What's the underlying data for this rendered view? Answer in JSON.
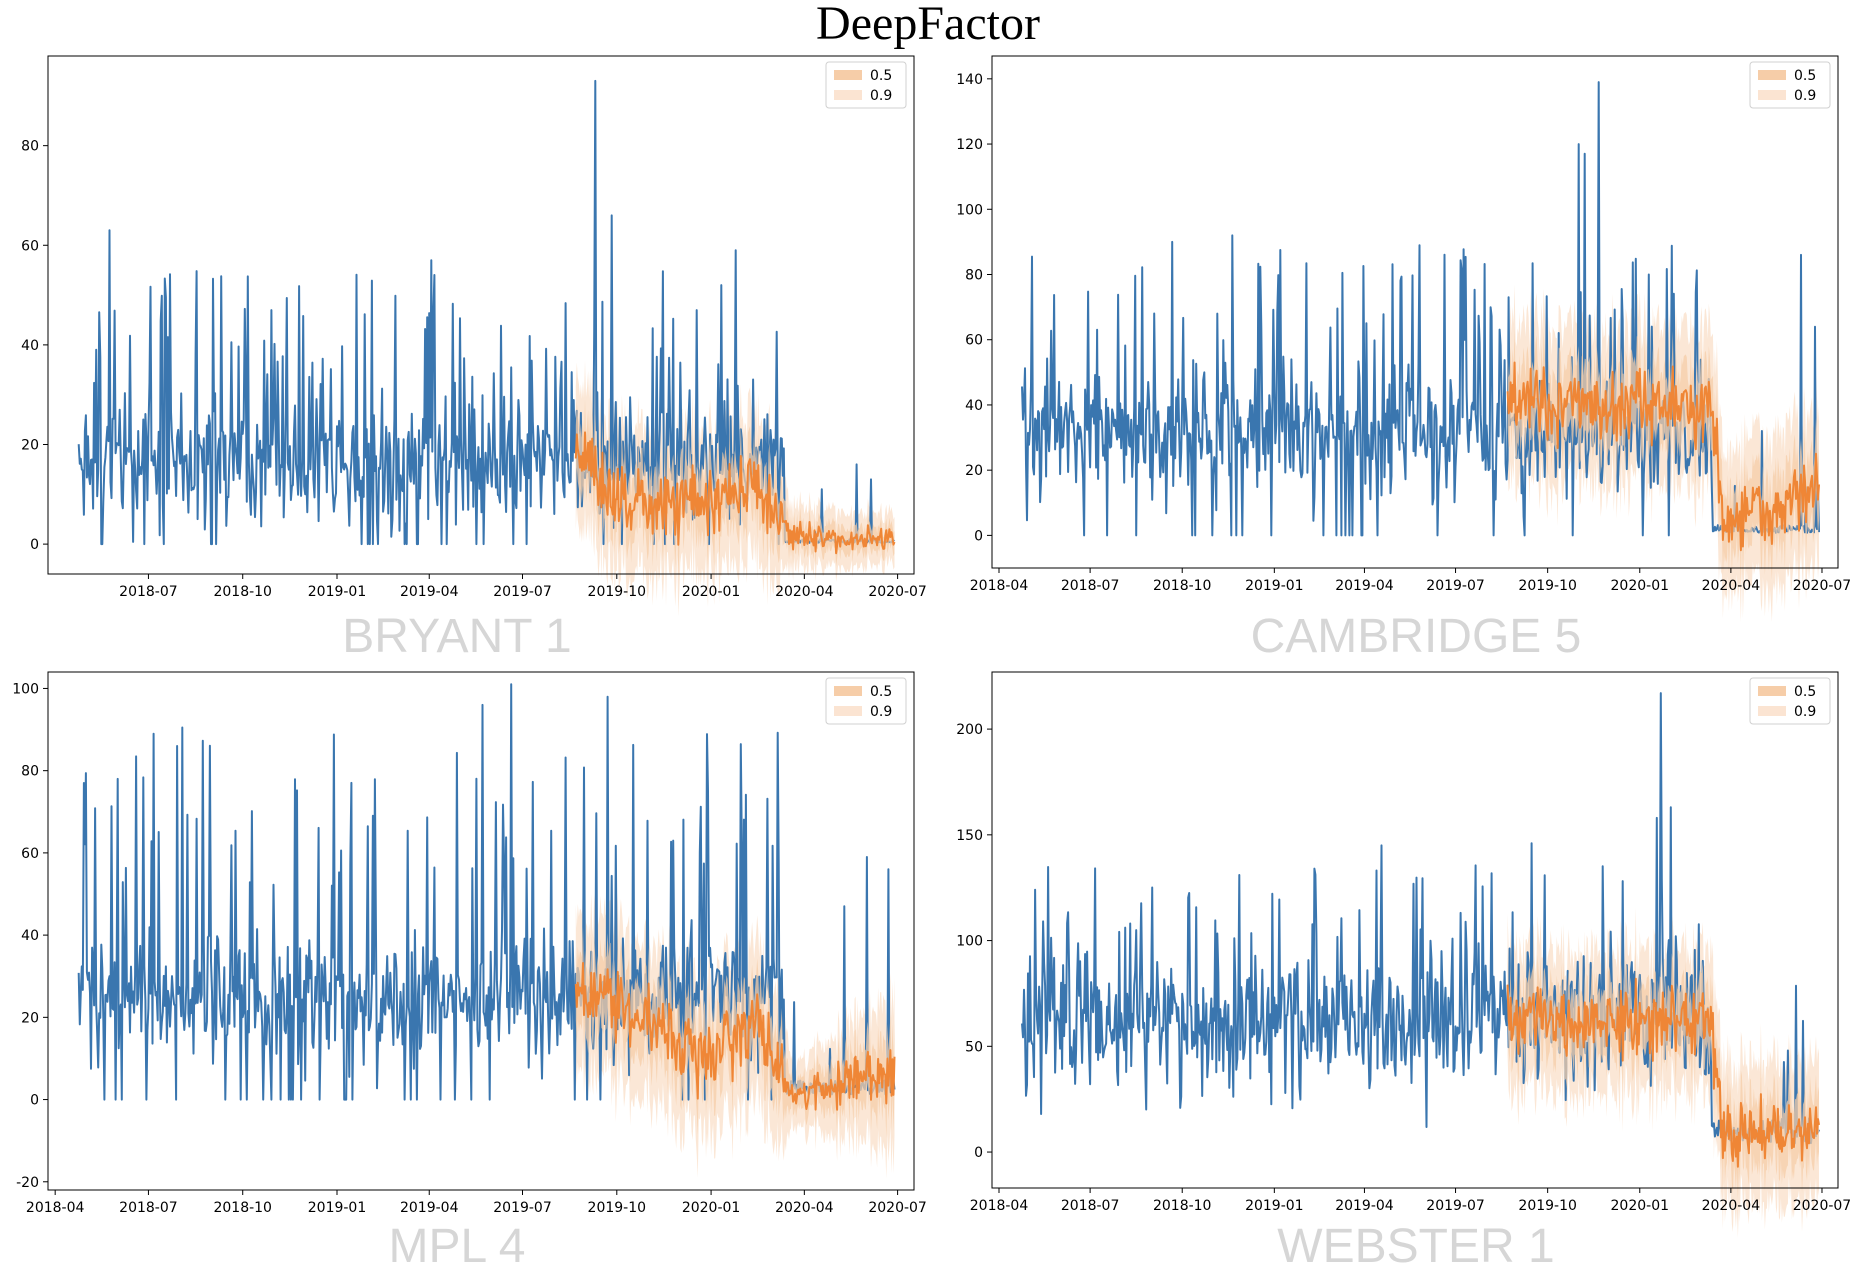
{
  "figure_title": "DeepFactor",
  "colors": {
    "actual": "#3a76af",
    "median": "#ef8636",
    "band_50": "#f6cda8",
    "band_90": "#fbe4d2"
  },
  "chart_data": [
    {
      "type": "line",
      "name": "BRYANT 1",
      "x_ticks": [
        "2018-07",
        "2018-10",
        "2019-01",
        "2019-04",
        "2019-07",
        "2019-10",
        "2020-01",
        "2020-04",
        "2020-07"
      ],
      "y_ticks": [
        0,
        20,
        40,
        60,
        80
      ],
      "xlim": [
        "2018-03-25",
        "2020-07-17"
      ],
      "ylim": [
        -6,
        98
      ],
      "legend": {
        "position": "top-right",
        "entries": [
          "0.5",
          "0.9"
        ]
      },
      "series": [
        {
          "role": "actual",
          "start": "2018-04-24",
          "end": "2020-03-12",
          "level": 18,
          "noise": 9,
          "spike_mult": 2.2,
          "spike_prob": 0.1,
          "zero_prob": 0.05,
          "spikes": [
            [
              "2018-05-24",
              63
            ],
            [
              "2019-09-10",
              93
            ],
            [
              "2019-09-26",
              66
            ],
            [
              "2020-01-25",
              59
            ],
            [
              "2020-01-11",
              52
            ],
            [
              "2019-04-03",
              57
            ]
          ],
          "tail": {
            "end": "2020-06-28",
            "level": 0.6,
            "spikes": [
              [
                "2020-04-18",
                11
              ],
              [
                "2020-05-22",
                16
              ],
              [
                "2020-06-05",
                13
              ]
            ]
          }
        },
        {
          "role": "forecast",
          "start": "2019-08-22",
          "end": "2020-06-28",
          "segments": [
            [
              "2019-08-22",
              19
            ],
            [
              "2019-10-01",
              8
            ],
            [
              "2019-12-20",
              8
            ],
            [
              "2020-02-15",
              12
            ],
            [
              "2020-03-18",
              1.5
            ],
            [
              "2020-06-28",
              0.8
            ]
          ],
          "amp": 6
        }
      ]
    },
    {
      "type": "line",
      "name": "CAMBRIDGE 5",
      "x_ticks": [
        "2018-04",
        "2018-07",
        "2018-10",
        "2019-01",
        "2019-04",
        "2019-07",
        "2019-10",
        "2020-01",
        "2020-04",
        "2020-07"
      ],
      "y_ticks": [
        0,
        20,
        40,
        60,
        80,
        100,
        120,
        140
      ],
      "xlim": [
        "2018-03-25",
        "2020-07-17"
      ],
      "ylim": [
        -10,
        147
      ],
      "legend": {
        "position": "top-right",
        "entries": [
          "0.5",
          "0.9"
        ]
      },
      "series": [
        {
          "role": "actual",
          "start": "2018-04-24",
          "end": "2020-03-12",
          "level": 34,
          "noise": 12,
          "spike_mult": 1.9,
          "spike_prob": 0.1,
          "zero_prob": 0.04,
          "spikes": [
            [
              "2019-11-21",
              139
            ],
            [
              "2019-11-01",
              120
            ],
            [
              "2019-11-07",
              117
            ],
            [
              "2020-01-10",
              80
            ],
            [
              "2018-11-20",
              92
            ],
            [
              "2018-09-21",
              90
            ]
          ],
          "tail": {
            "end": "2020-06-28",
            "level": 2,
            "spikes": [
              [
                "2020-05-02",
                32
              ],
              [
                "2020-06-10",
                86
              ],
              [
                "2020-06-24",
                64
              ]
            ]
          }
        },
        {
          "role": "forecast",
          "start": "2019-08-22",
          "end": "2020-06-28",
          "segments": [
            [
              "2019-08-22",
              40
            ],
            [
              "2019-12-10",
              40
            ],
            [
              "2020-03-12",
              40
            ],
            [
              "2020-03-25",
              5
            ],
            [
              "2020-05-15",
              6
            ],
            [
              "2020-06-28",
              15
            ]
          ],
          "amp": 10
        }
      ]
    },
    {
      "type": "line",
      "name": "MPL 4",
      "x_ticks": [
        "2018-04",
        "2018-07",
        "2018-10",
        "2019-01",
        "2019-04",
        "2019-07",
        "2019-10",
        "2020-01",
        "2020-04",
        "2020-07"
      ],
      "y_ticks": [
        -20,
        0,
        20,
        40,
        60,
        80,
        100
      ],
      "xlim": [
        "2018-03-25",
        "2020-07-17"
      ],
      "ylim": [
        -22,
        104
      ],
      "legend": {
        "position": "top-right",
        "entries": [
          "0.5",
          "0.9"
        ]
      },
      "series": [
        {
          "role": "actual",
          "start": "2018-04-24",
          "end": "2020-03-12",
          "level": 27,
          "noise": 10,
          "spike_mult": 2.4,
          "spike_prob": 0.1,
          "zero_prob": 0.04,
          "spikes": [
            [
              "2018-07-06",
              89
            ],
            [
              "2019-06-20",
              101
            ],
            [
              "2019-05-23",
              96
            ],
            [
              "2019-09-22",
              98
            ],
            [
              "2018-06-01",
              78
            ],
            [
              "2018-04-29",
              77
            ]
          ],
          "tail": {
            "end": "2020-06-28",
            "level": 3,
            "spikes": [
              [
                "2020-05-10",
                47
              ],
              [
                "2020-06-01",
                59
              ],
              [
                "2020-06-22",
                56
              ]
            ]
          }
        },
        {
          "role": "forecast",
          "start": "2019-08-22",
          "end": "2020-06-28",
          "segments": [
            [
              "2019-08-22",
              25
            ],
            [
              "2019-10-20",
              22
            ],
            [
              "2019-12-25",
              10
            ],
            [
              "2020-02-15",
              18
            ],
            [
              "2020-03-20",
              1
            ],
            [
              "2020-06-28",
              6
            ]
          ],
          "amp": 8
        }
      ]
    },
    {
      "type": "line",
      "name": "WEBSTER 1",
      "x_ticks": [
        "2018-04",
        "2018-07",
        "2018-10",
        "2019-01",
        "2019-04",
        "2019-07",
        "2019-10",
        "2020-01",
        "2020-04",
        "2020-07"
      ],
      "y_ticks": [
        0,
        50,
        100,
        150,
        200
      ],
      "xlim": [
        "2018-03-25",
        "2020-07-17"
      ],
      "ylim": [
        -17,
        227
      ],
      "legend": {
        "position": "top-right",
        "entries": [
          "0.5",
          "0.9"
        ]
      },
      "series": [
        {
          "role": "actual",
          "start": "2018-04-24",
          "end": "2020-03-12",
          "level": 65,
          "noise": 20,
          "spike_mult": 1.5,
          "spike_prob": 0.1,
          "zero_prob": 0.0,
          "spikes": [
            [
              "2020-01-22",
              217
            ],
            [
              "2020-01-18",
              158
            ],
            [
              "2020-02-01",
              163
            ],
            [
              "2019-04-18",
              145
            ],
            [
              "2019-09-15",
              146
            ]
          ],
          "tail": {
            "end": "2020-06-28",
            "level": 10,
            "spikes": [
              [
                "2020-05-28",
                48
              ],
              [
                "2020-06-12",
                62
              ]
            ]
          }
        },
        {
          "role": "forecast",
          "start": "2019-08-22",
          "end": "2020-06-28",
          "segments": [
            [
              "2019-08-22",
              62
            ],
            [
              "2020-03-12",
              62
            ],
            [
              "2020-03-25",
              6
            ],
            [
              "2020-06-28",
              12
            ]
          ],
          "amp": 14
        }
      ]
    }
  ]
}
